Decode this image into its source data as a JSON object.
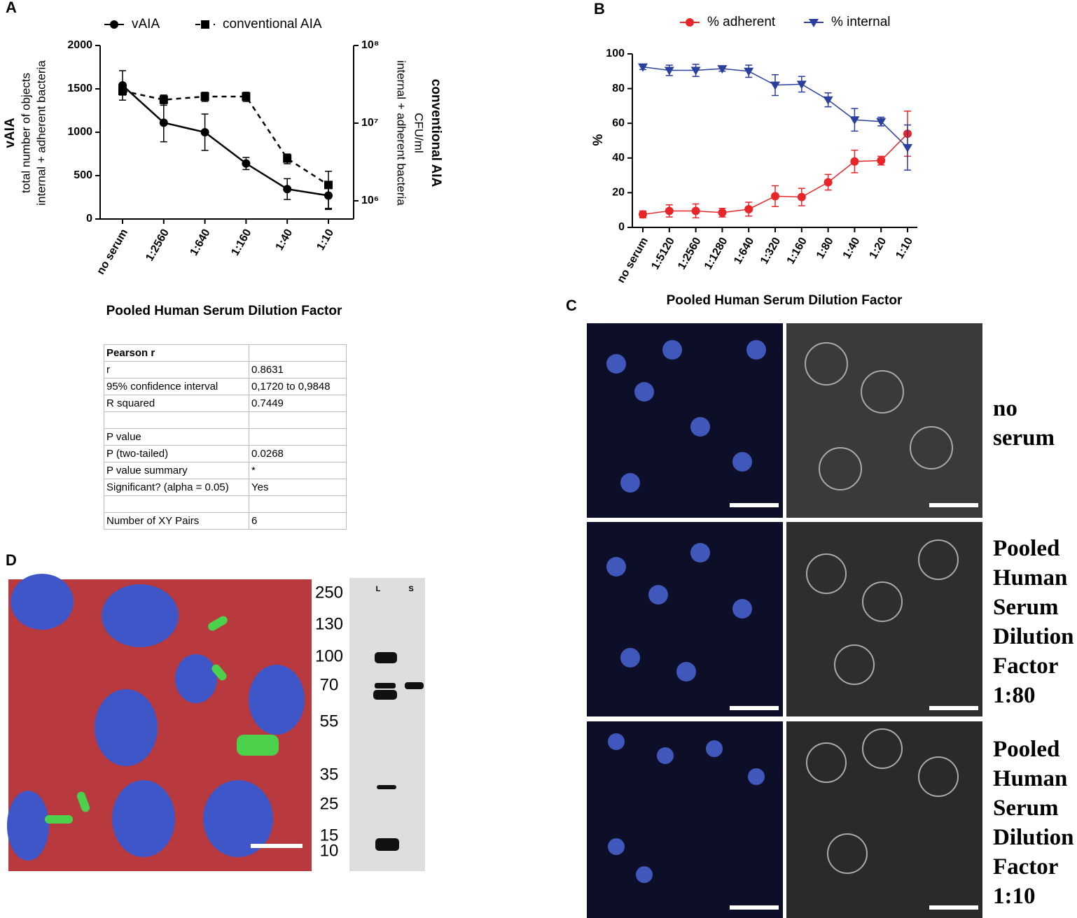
{
  "panel_labels": [
    "A",
    "B",
    "C",
    "D"
  ],
  "chart_data": [
    {
      "type": "line",
      "xlabel": "Pooled Human Serum Dilution Factor",
      "ylabel": [
        "vAIA",
        "total number of objects",
        "internal + adherent bacteria"
      ],
      "y2label": [
        "conventional AIA",
        "CFU/ml",
        "internal + adherent bacteria"
      ],
      "categories": [
        "no serum",
        "1:2560",
        "1:640",
        "1:160",
        "1:40",
        "1:10"
      ],
      "ylim": [
        0,
        2000
      ],
      "yticks": [
        0,
        500,
        1000,
        1500,
        2000
      ],
      "y2lim": [
        583000,
        100000000
      ],
      "y2log": true,
      "y2ticks": [
        {
          "value": 1000000,
          "label": "10⁶"
        },
        {
          "value": 10000000,
          "label": "10⁷"
        },
        {
          "value": 100000000,
          "label": "10⁸"
        }
      ],
      "series": [
        {
          "name": "vAIA",
          "color": "#000000",
          "marker": "circle",
          "line_style": "solid",
          "values": [
            1540,
            1110,
            1000,
            640,
            345,
            270
          ],
          "errors": [
            170,
            220,
            210,
            70,
            120,
            160
          ]
        },
        {
          "name": "conventional AIA",
          "color": "#000000",
          "marker": "square",
          "line_style": "dashed",
          "axis": "y2",
          "values": [
            26000000,
            20000000,
            22000000,
            22000000,
            3500000,
            1600000
          ],
          "errors": [
            3000000,
            3000000,
            3000000,
            3000000,
            500000,
            800000
          ]
        }
      ]
    },
    {
      "type": "line",
      "xlabel": "Pooled Human Serum Dilution Factor",
      "ylabel": [
        "%"
      ],
      "categories": [
        "no serum",
        "1:5120",
        "1:2560",
        "1:1280",
        "1:640",
        "1:320",
        "1:160",
        "1:80",
        "1:40",
        "1:20",
        "1:10"
      ],
      "ylim": [
        0,
        100
      ],
      "yticks": [
        0,
        20,
        40,
        60,
        80,
        100
      ],
      "series": [
        {
          "name": "% adherent",
          "color": "#e8262a",
          "marker": "circle",
          "line_style": "solid",
          "values": [
            7.5,
            9.5,
            9.5,
            8.5,
            10.5,
            18,
            17.5,
            26,
            38,
            38.5,
            54
          ],
          "errors": [
            2,
            3.5,
            4,
            2.5,
            4,
            6,
            5,
            4.5,
            6.5,
            2.5,
            13
          ]
        },
        {
          "name": "% internal",
          "color": "#2b3f9c",
          "marker": "triangle-down",
          "line_style": "solid",
          "values": [
            92.5,
            90.5,
            90.5,
            91.5,
            90,
            82,
            82.5,
            73.5,
            62,
            61,
            46
          ],
          "errors": [
            1.5,
            3,
            3.5,
            1.5,
            3.5,
            6,
            4.5,
            4,
            6.5,
            2.5,
            13
          ]
        }
      ]
    }
  ],
  "pearson_table": {
    "rows": [
      [
        "Pearson r"
      ],
      [
        "r",
        "0.8631"
      ],
      [
        "95% confidence interval",
        "0,1720 to 0,9848"
      ],
      [
        "R squared",
        "0.7449"
      ],
      [],
      [
        "P value"
      ],
      [
        "P (two-tailed)",
        "0.0268"
      ],
      [
        "P value summary",
        "*"
      ],
      [
        "Significant? (alpha = 0.05)",
        "Yes"
      ],
      [],
      [
        "Number of XY Pairs",
        "6"
      ]
    ]
  },
  "panel_c": {
    "labels": [
      "no serum",
      "Pooled Human Serum Dilution Factor 1:80",
      "Pooled Human Serum Dilution Factor 1:10"
    ]
  },
  "panel_d": {
    "ladder": [
      250,
      130,
      100,
      70,
      55,
      35,
      25,
      15,
      10
    ],
    "lanes": [
      "L",
      "S"
    ]
  }
}
